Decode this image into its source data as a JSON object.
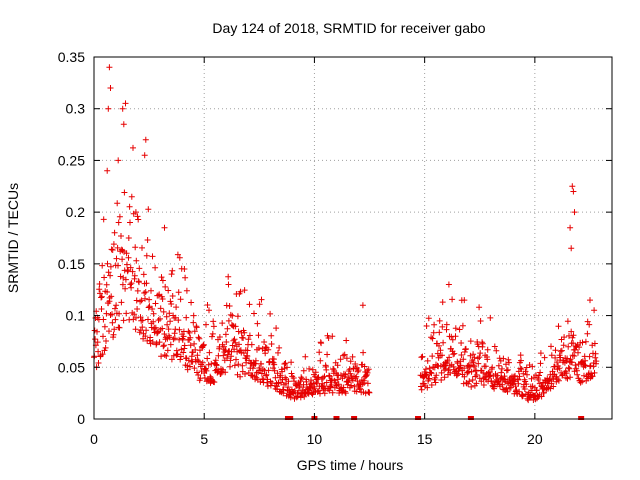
{
  "chart_data": {
    "type": "scatter",
    "title": "Day 124 of 2018, SRMTID for receiver gabo",
    "xlabel": "GPS time / hours",
    "ylabel": "SRMTID / TECUs",
    "xlim": [
      0,
      23.5
    ],
    "ylim": [
      0,
      0.35
    ],
    "x_ticks": [
      0,
      5,
      10,
      15,
      20
    ],
    "x_tick_labels": [
      "0",
      "5",
      "10",
      "15",
      "20"
    ],
    "y_ticks": [
      0,
      0.05,
      0.1,
      0.15,
      0.2,
      0.25,
      0.3,
      0.35
    ],
    "y_tick_labels": [
      "0",
      "0.05",
      "0.1",
      "0.15",
      "0.2",
      "0.25",
      "0.3",
      "0.35"
    ],
    "grid": true,
    "marker": "+",
    "color": "#e60000",
    "series": [
      {
        "name": "SRMTID",
        "segments": [
          {
            "x_start": 0.0,
            "x_end": 12.5,
            "step": 0.017
          },
          {
            "x_start": 14.8,
            "x_end": 22.8,
            "step": 0.017
          }
        ],
        "profile": [
          [
            0.0,
            0.085
          ],
          [
            0.5,
            0.11
          ],
          [
            0.8,
            0.14
          ],
          [
            1.2,
            0.16
          ],
          [
            1.5,
            0.17
          ],
          [
            2.0,
            0.15
          ],
          [
            2.5,
            0.13
          ],
          [
            3.0,
            0.11
          ],
          [
            3.5,
            0.105
          ],
          [
            4.0,
            0.09
          ],
          [
            4.5,
            0.07
          ],
          [
            5.0,
            0.06
          ],
          [
            5.5,
            0.06
          ],
          [
            6.0,
            0.075
          ],
          [
            6.5,
            0.075
          ],
          [
            7.0,
            0.07
          ],
          [
            7.5,
            0.065
          ],
          [
            8.0,
            0.055
          ],
          [
            8.5,
            0.045
          ],
          [
            9.0,
            0.035
          ],
          [
            9.5,
            0.035
          ],
          [
            10.0,
            0.04
          ],
          [
            10.5,
            0.045
          ],
          [
            11.0,
            0.045
          ],
          [
            11.5,
            0.045
          ],
          [
            12.0,
            0.045
          ],
          [
            12.5,
            0.045
          ],
          [
            14.8,
            0.05
          ],
          [
            15.5,
            0.06
          ],
          [
            16.0,
            0.07
          ],
          [
            16.5,
            0.07
          ],
          [
            17.0,
            0.055
          ],
          [
            17.5,
            0.06
          ],
          [
            18.0,
            0.055
          ],
          [
            18.5,
            0.05
          ],
          [
            19.0,
            0.045
          ],
          [
            19.5,
            0.035
          ],
          [
            20.0,
            0.03
          ],
          [
            20.5,
            0.045
          ],
          [
            21.0,
            0.055
          ],
          [
            21.5,
            0.07
          ],
          [
            21.8,
            0.08
          ],
          [
            22.0,
            0.06
          ],
          [
            22.5,
            0.07
          ],
          [
            22.8,
            0.08
          ]
        ],
        "spikes": [
          {
            "x": 0.7,
            "y": 0.34
          },
          {
            "x": 0.75,
            "y": 0.32
          },
          {
            "x": 0.65,
            "y": 0.3
          },
          {
            "x": 1.3,
            "y": 0.3
          },
          {
            "x": 1.35,
            "y": 0.285
          },
          {
            "x": 2.35,
            "y": 0.27
          },
          {
            "x": 2.3,
            "y": 0.255
          },
          {
            "x": 1.1,
            "y": 0.25
          },
          {
            "x": 0.6,
            "y": 0.24
          },
          {
            "x": 1.9,
            "y": 0.2
          },
          {
            "x": 3.2,
            "y": 0.185
          },
          {
            "x": 4.1,
            "y": 0.145
          },
          {
            "x": 6.1,
            "y": 0.13
          },
          {
            "x": 16.1,
            "y": 0.13
          },
          {
            "x": 16.8,
            "y": 0.115
          },
          {
            "x": 21.7,
            "y": 0.225
          },
          {
            "x": 21.75,
            "y": 0.22
          },
          {
            "x": 21.8,
            "y": 0.2
          },
          {
            "x": 21.6,
            "y": 0.185
          },
          {
            "x": 21.65,
            "y": 0.165
          },
          {
            "x": 12.2,
            "y": 0.11
          },
          {
            "x": 22.5,
            "y": 0.115
          }
        ],
        "baseline_flags": [
          8.8,
          8.9,
          10.0,
          11.0,
          11.8,
          14.7,
          17.1,
          22.1
        ]
      }
    ]
  }
}
